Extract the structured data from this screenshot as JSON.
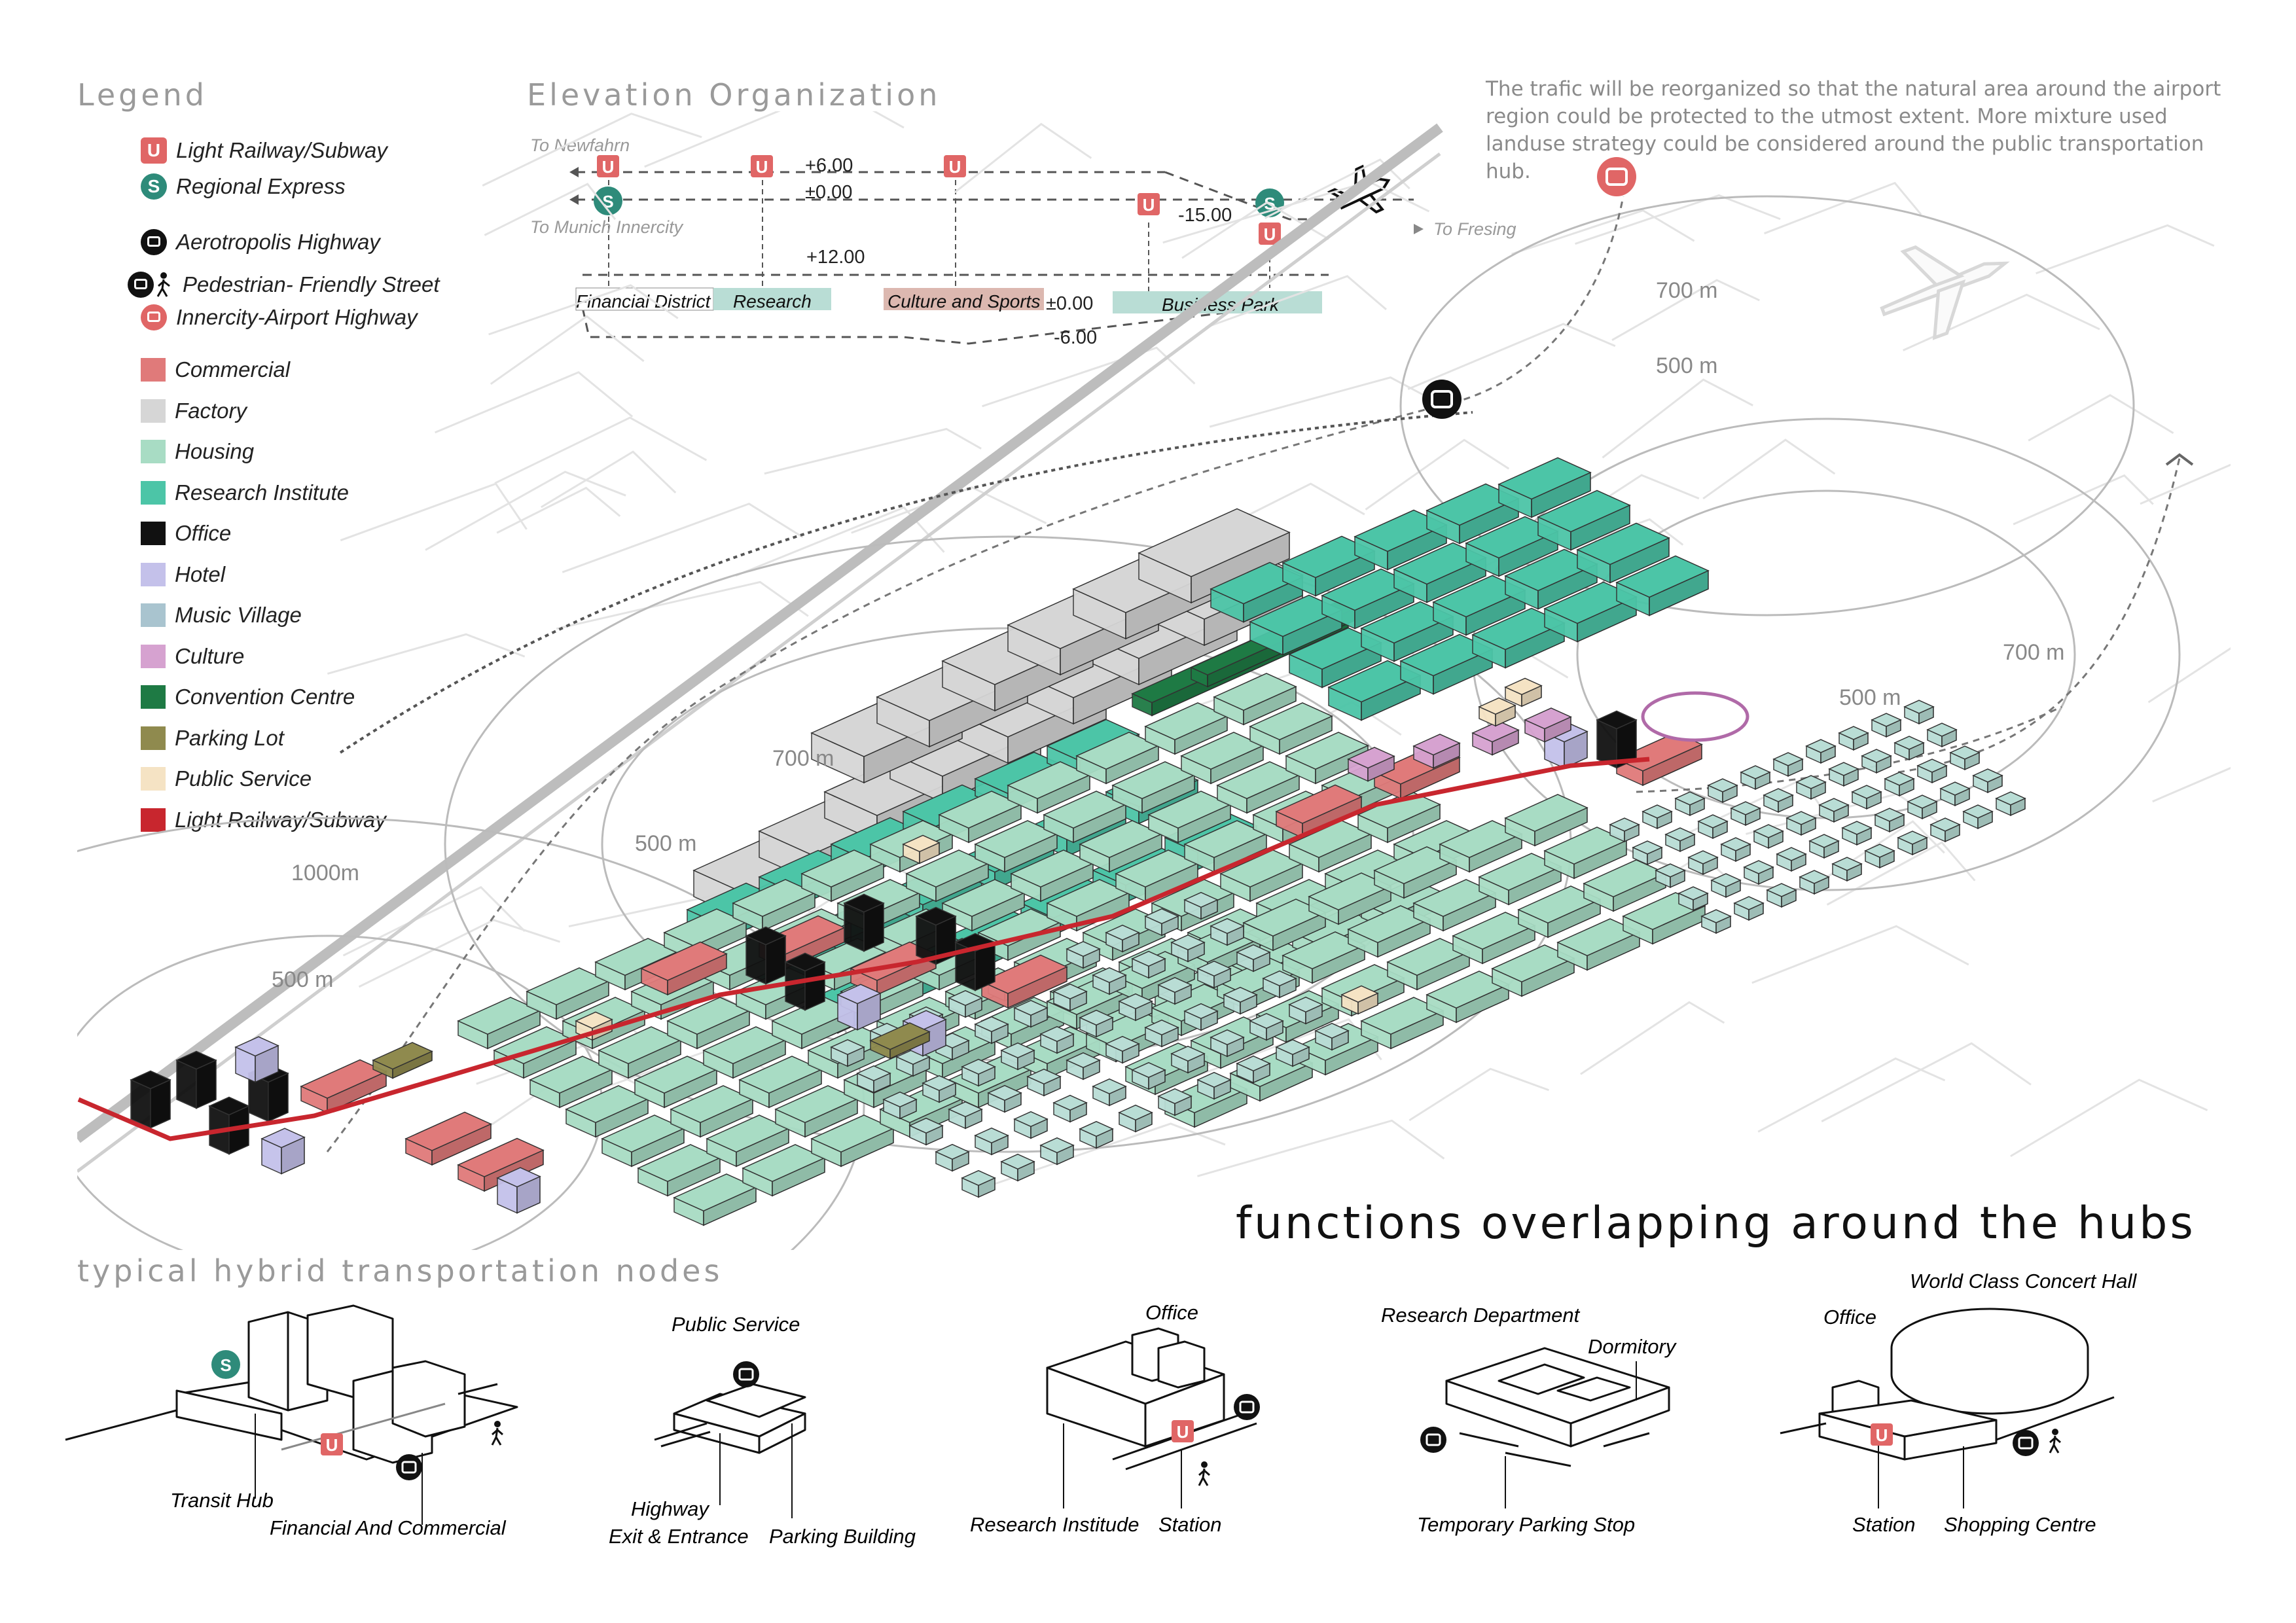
{
  "legend": {
    "heading": "Legend",
    "transport": [
      {
        "label": "Light Railway/Subway",
        "icon": "u-bahn-icon",
        "glyph": "U"
      },
      {
        "label": "Regional Express",
        "icon": "s-bahn-icon",
        "glyph": "S"
      },
      {
        "label": "Aerotropolis Highway",
        "icon": "bus-icon"
      },
      {
        "label": "Pedestrian- Friendly Street",
        "icon": "bus-pedestrian-icon"
      },
      {
        "label": "Innercity-Airport Highway",
        "icon": "red-bus-icon"
      }
    ],
    "landuse": [
      {
        "label": "Commercial",
        "color": "#e07a7a"
      },
      {
        "label": "Factory",
        "color": "#d6d6d6"
      },
      {
        "label": "Housing",
        "color": "#a8dcc4"
      },
      {
        "label": "Research Institute",
        "color": "#4cc5a7"
      },
      {
        "label": "Office",
        "color": "#111111"
      },
      {
        "label": "Hotel",
        "color": "#c4c1ea"
      },
      {
        "label": "Music Village",
        "color": "#a9c4cf"
      },
      {
        "label": "Culture",
        "color": "#d6a2d0"
      },
      {
        "label": "Convention Centre",
        "color": "#1e7a44"
      },
      {
        "label": "Parking Lot",
        "color": "#8f8a4e"
      },
      {
        "label": "Public Service",
        "color": "#f5e3c4"
      },
      {
        "label": "Light Railway/Subway",
        "color": "#c8262e"
      }
    ]
  },
  "elevation": {
    "heading": "Elevation Organization",
    "to_newfahrn": "To Newfahrn",
    "to_munich": "To Munich Innercity",
    "to_fresing": "To Fresing",
    "levels": {
      "plus6": "+6.00",
      "pm0_top": "±0.00",
      "minus15": "-15.00",
      "plus12": "+12.00",
      "pm0_bottom": "±0.00",
      "minus6": "-6.00"
    },
    "zones": [
      {
        "label": "Financial District",
        "color": "#ffffff"
      },
      {
        "label": "Research",
        "color": "#b9ddd5"
      },
      {
        "label": "Culture and Sports",
        "color": "#dcb8b0"
      },
      {
        "label": "Business Park",
        "color": "#b9ddd5"
      }
    ]
  },
  "note": "The trafic will be reorganized so that the natural area around the airport region could be protected to the utmost extent. More mixture used landuse strategy could be considered around the public transportation hub.",
  "map": {
    "radius_labels": {
      "r700_top": "700 m",
      "r500_top": "500 m",
      "r700_mid": "700 m",
      "r500_mid": "500 m",
      "r700_east": "700 m",
      "r500_east": "500 m",
      "r1000": "1000m",
      "r500_west": "500 m"
    }
  },
  "tagline": "functions overlapping around the hubs",
  "nodes": {
    "heading": "typical hybrid transportation nodes",
    "n1": {
      "a": "Transit Hub",
      "b": "Financial And Commercial"
    },
    "n2": {
      "a": "Public Service",
      "b": "Highway",
      "c": "Exit & Entrance",
      "d": "Parking Building"
    },
    "n3": {
      "a": "Office",
      "b": "Research Institude",
      "c": "Station"
    },
    "n4": {
      "a": "Research Department",
      "b": "Dormitory",
      "c": "Temporary Parking Stop"
    },
    "n5": {
      "a": "World Class Concert Hall",
      "b": "Office",
      "c": "Station",
      "d": "Shopping Centre"
    }
  },
  "colors": {
    "commercial": "#e07a7a",
    "factory": "#d6d6d6",
    "housing": "#a8dcc4",
    "research": "#4cc5a7",
    "office": "#111111",
    "hotel": "#c4c1ea",
    "culture": "#d6a2d0",
    "convention": "#1e7a44",
    "parking": "#8f8a4e",
    "public": "#f5e3c4",
    "rail": "#c8262e"
  }
}
